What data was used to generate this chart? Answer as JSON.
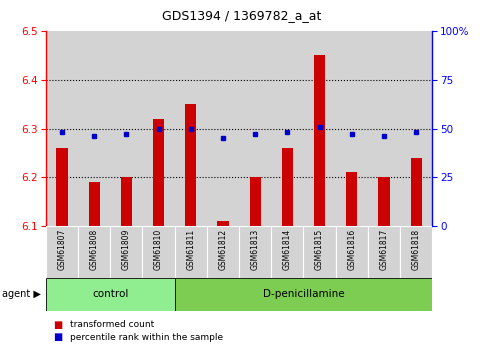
{
  "title": "GDS1394 / 1369782_a_at",
  "samples": [
    "GSM61807",
    "GSM61808",
    "GSM61809",
    "GSM61810",
    "GSM61811",
    "GSM61812",
    "GSM61813",
    "GSM61814",
    "GSM61815",
    "GSM61816",
    "GSM61817",
    "GSM61818"
  ],
  "red_values": [
    6.26,
    6.19,
    6.2,
    6.32,
    6.35,
    6.11,
    6.2,
    6.26,
    6.45,
    6.21,
    6.2,
    6.24
  ],
  "blue_values": [
    48,
    46,
    47,
    50,
    50,
    45,
    47,
    48,
    51,
    47,
    46,
    48
  ],
  "ylim_left": [
    6.1,
    6.5
  ],
  "ylim_right": [
    0,
    100
  ],
  "yticks_left": [
    6.1,
    6.2,
    6.3,
    6.4,
    6.5
  ],
  "yticks_right": [
    0,
    25,
    50,
    75,
    100
  ],
  "ytick_labels_right": [
    "0",
    "25",
    "50",
    "75",
    "100%"
  ],
  "control_count": 4,
  "agent_label": "agent",
  "control_label": "control",
  "dpenicillamine_label": "D-penicillamine",
  "legend_red_label": "transformed count",
  "legend_blue_label": "percentile rank within the sample",
  "bar_color": "#cc0000",
  "dot_color": "#0000cc",
  "control_bg": "#90ee90",
  "dpen_bg": "#7dcd52",
  "tick_bg": "#d3d3d3",
  "bar_width": 0.35,
  "base_value": 6.1
}
